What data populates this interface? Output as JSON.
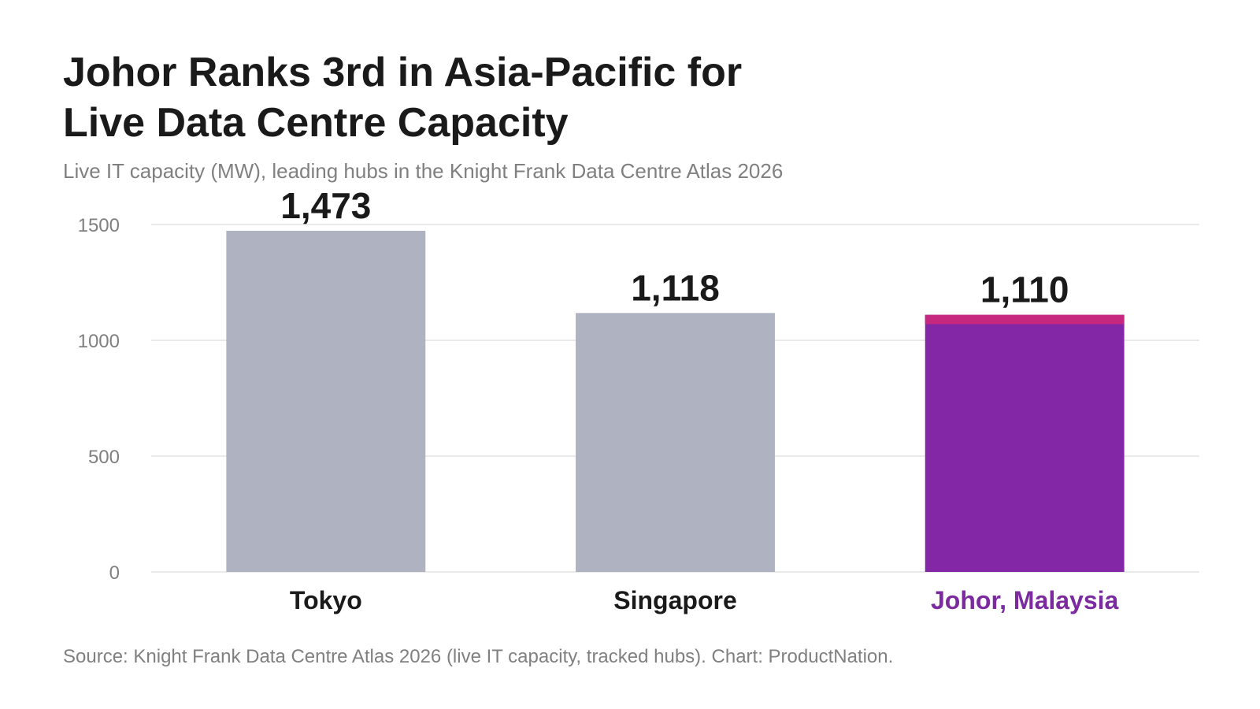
{
  "title": "Johor Ranks 3rd in Asia-Pacific for\nLive Data Centre Capacity",
  "subtitle": "Live IT capacity (MW), leading hubs in the Knight Frank Data Centre Atlas 2026",
  "source": "Source: Knight Frank Data Centre Atlas 2026 (live IT capacity, tracked hubs). Chart: ProductNation.",
  "chart_data": {
    "type": "bar",
    "categories": [
      "Tokyo",
      "Singapore",
      "Johor, Malaysia"
    ],
    "values": [
      1473,
      1118,
      1110
    ],
    "data_labels": [
      "1,473",
      "1,118",
      "1,110"
    ],
    "highlight_segment": {
      "category": "Johor, Malaysia",
      "from": 1070,
      "to": 1110
    },
    "title": "",
    "xlabel": "",
    "ylabel": "",
    "ylim": [
      0,
      1500
    ],
    "yticks": [
      0,
      500,
      1000,
      1500
    ],
    "grid": true,
    "legend": "none",
    "colors": {
      "default_bar": "#afb3c1",
      "highlight_bar": "#8427a6",
      "highlight_segment": "#c7287f",
      "highlight_label": "#7b2a9f",
      "text": "#1a1a1a",
      "axis_text": "#808080",
      "grid": "#e3e3e3"
    },
    "highlight_category": "Johor, Malaysia"
  }
}
